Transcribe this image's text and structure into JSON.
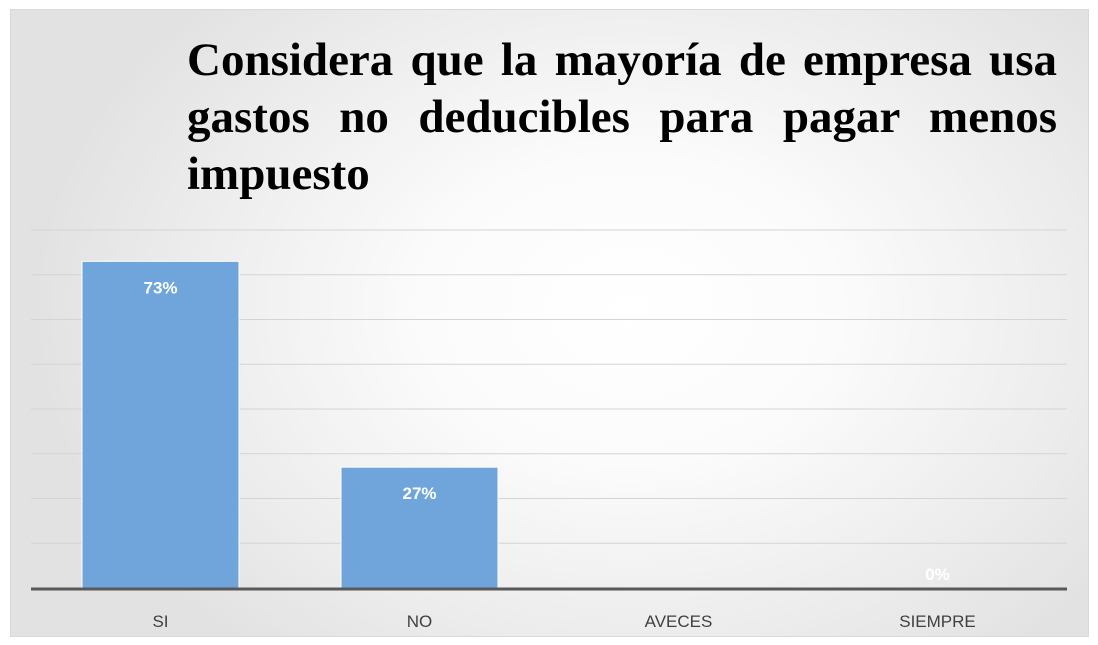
{
  "colors": {
    "bar": "#6fa5db",
    "bar_edge": "#ffffff",
    "gridline": "#d4d4d4",
    "axis_line": "#595959",
    "data_label": "#ffffff",
    "tick_label": "#404040"
  },
  "chart_data": {
    "type": "bar",
    "title": "Considera que la mayoría de empresa usa gastos no deducibles para pagar menos impuesto",
    "xlabel": "",
    "ylabel": "",
    "categories": [
      "SI",
      "NO",
      "AVECES",
      "SIEMPRE"
    ],
    "values": [
      73,
      27,
      0,
      0
    ],
    "data_labels": [
      "73%",
      "27%",
      "",
      "0%"
    ],
    "ylim": [
      0,
      80
    ],
    "grid": true,
    "legend": "none"
  }
}
